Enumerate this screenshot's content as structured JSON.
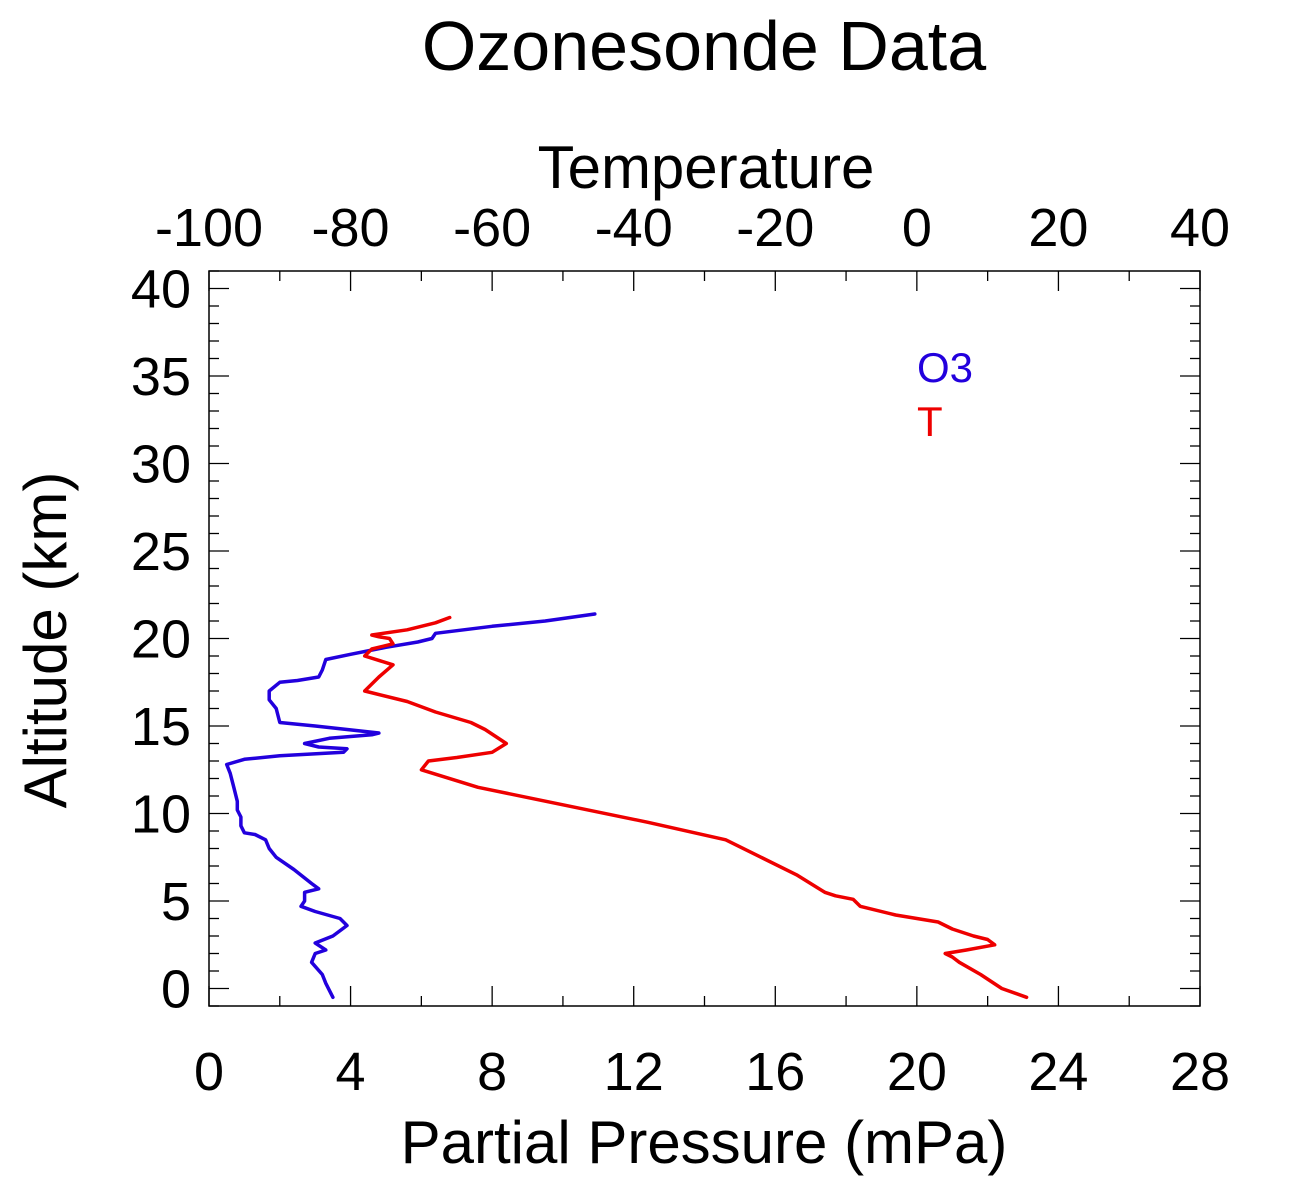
{
  "chart_data": {
    "type": "line",
    "title": "Ozonesonde Data",
    "xlabel": "Partial Pressure (mPa)",
    "ylabel": "Altitude (km)",
    "x2label": "Temperature",
    "xlim": [
      0,
      28
    ],
    "x2lim": [
      -100,
      40
    ],
    "ylim": [
      -1,
      41
    ],
    "xticks": [
      "0",
      "4",
      "8",
      "12",
      "16",
      "20",
      "24",
      "28"
    ],
    "x2ticks": [
      "-100",
      "-80",
      "-60",
      "-40",
      "-20",
      "0",
      "20",
      "40"
    ],
    "yticks": [
      "0",
      "5",
      "10",
      "15",
      "20",
      "25",
      "30",
      "35",
      "40"
    ],
    "legend_position": "top-right",
    "series": [
      {
        "name": "O3",
        "axis": "bottom",
        "color": "#2200dd",
        "x": [
          3.5,
          3.3,
          3.2,
          2.9,
          3.0,
          3.3,
          3.0,
          3.5,
          3.9,
          3.7,
          3.0,
          2.6,
          2.7,
          2.7,
          3.1,
          2.9,
          2.4,
          1.9,
          1.7,
          1.6,
          1.3,
          1.0,
          0.9,
          0.9,
          0.8,
          0.8,
          0.7,
          0.6,
          0.5,
          1.0,
          2.0,
          3.8,
          3.9,
          3.1,
          2.7,
          3.4,
          4.6,
          4.8,
          3.0,
          2.0,
          1.9,
          1.7,
          1.7,
          2.0,
          2.5,
          3.1,
          3.2,
          3.3,
          4.0,
          5.0,
          5.9,
          6.3,
          6.4,
          8.0,
          9.5,
          10.9
        ],
        "y": [
          -0.5,
          0.3,
          0.8,
          1.5,
          2.0,
          2.2,
          2.6,
          3.0,
          3.6,
          4.0,
          4.4,
          4.7,
          5.0,
          5.5,
          5.7,
          6.0,
          6.8,
          7.5,
          8.0,
          8.5,
          8.8,
          8.9,
          9.3,
          9.8,
          10.2,
          10.7,
          11.5,
          12.3,
          12.8,
          13.1,
          13.3,
          13.5,
          13.7,
          13.8,
          14.0,
          14.3,
          14.5,
          14.6,
          15.0,
          15.2,
          16.0,
          16.5,
          17.0,
          17.5,
          17.6,
          17.8,
          18.2,
          18.8,
          19.1,
          19.5,
          19.8,
          20.0,
          20.3,
          20.7,
          21.0,
          21.4
        ]
      },
      {
        "name": "T",
        "axis": "top",
        "color": "#ee0000",
        "x": [
          15.5,
          12.0,
          9.0,
          6.0,
          5.0,
          4.0,
          7.0,
          11.0,
          10.0,
          8.0,
          5.0,
          3.0,
          -3.0,
          -8.0,
          -9.0,
          -11.5,
          -13.0,
          -17.0,
          -22.0,
          -27.0,
          -38.0,
          -50.0,
          -62.0,
          -70.0,
          -69.0,
          -65.0,
          -60.0,
          -58.0,
          -61.0,
          -63.0,
          -68.0,
          -72.0,
          -78.0,
          -76.0,
          -74.0,
          -78.0,
          -77.0,
          -74.0,
          -74.5,
          -76.0,
          -77.0,
          -72.0,
          -68.0,
          -66.0
        ],
        "y": [
          -0.5,
          0.0,
          0.8,
          1.5,
          1.8,
          2.0,
          2.2,
          2.5,
          2.8,
          3.0,
          3.4,
          3.8,
          4.2,
          4.7,
          5.1,
          5.3,
          5.5,
          6.5,
          7.5,
          8.5,
          9.5,
          10.5,
          11.5,
          12.5,
          13.0,
          13.2,
          13.5,
          14.0,
          14.8,
          15.2,
          15.8,
          16.4,
          17.0,
          17.8,
          18.5,
          19.0,
          19.4,
          19.7,
          20.0,
          20.1,
          20.2,
          20.5,
          20.9,
          21.2
        ]
      }
    ]
  }
}
